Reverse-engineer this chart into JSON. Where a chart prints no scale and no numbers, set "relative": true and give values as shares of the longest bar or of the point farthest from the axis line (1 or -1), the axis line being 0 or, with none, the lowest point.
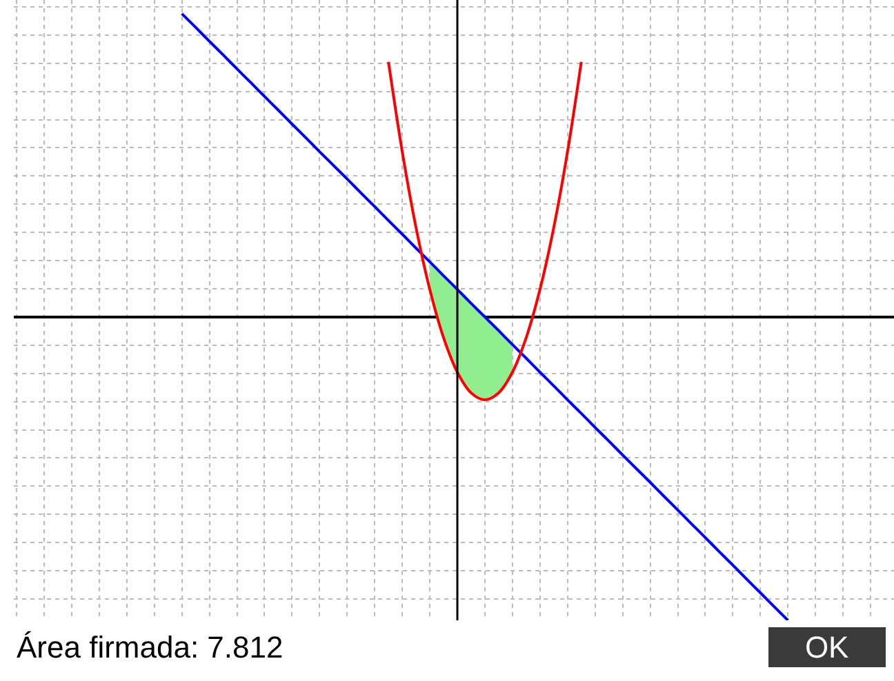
{
  "chart_data": {
    "type": "line",
    "relative": true,
    "grid": true,
    "marker": "none",
    "line_style": "solid",
    "categories": [
      null,
      null,
      null,
      null,
      null,
      null,
      null,
      null,
      null,
      null,
      null,
      null,
      null,
      null,
      null,
      null,
      null,
      null,
      null,
      null,
      null,
      null,
      null,
      null,
      null,
      null,
      null,
      null,
      null,
      null,
      null,
      null,
      null,
      null,
      null,
      null,
      null,
      null,
      null,
      null,
      null,
      null,
      null,
      null,
      null,
      null,
      null,
      null,
      null,
      null,
      null,
      null,
      null,
      null,
      null,
      null,
      null,
      null,
      null,
      null,
      null,
      null,
      null,
      null
    ],
    "series": [
      {
        "color": "#0000ff",
        "values": [
          null,
          null,
          null,
          null,
          null,
          null,
          null,
          null,
          null,
          null,
          null,
          null,
          1,
          0.955,
          0.909,
          0.864,
          0.818,
          0.773,
          0.727,
          0.682,
          0.636,
          0.591,
          0.545,
          0.5,
          0.455,
          0.409,
          0.364,
          0.318,
          0.273,
          0.227,
          0.182,
          0.136,
          0.091,
          0.045,
          0,
          -0.045,
          -0.091,
          -0.136,
          -0.182,
          -0.227,
          -0.273,
          -0.318,
          -0.364,
          -0.409,
          -0.455,
          -0.5,
          -0.545,
          -0.591,
          -0.636,
          -0.682,
          -0.727,
          -0.773,
          -0.818,
          -0.864,
          -0.909,
          -0.955,
          -1,
          null,
          null,
          null,
          null,
          null,
          null,
          null
        ],
        "lower": [
          null,
          null,
          null,
          null,
          null,
          null,
          null,
          null,
          null,
          null,
          null,
          null,
          null,
          null,
          null,
          null,
          null,
          null,
          null,
          null,
          null,
          null,
          null,
          null,
          null,
          null,
          null,
          null,
          null,
          null,
          0.091,
          -0.068,
          -0.182,
          -0.25,
          -0.273,
          -0.25,
          -0.182,
          null,
          null,
          null,
          null,
          null,
          null,
          null,
          null,
          null,
          null,
          null,
          null,
          null,
          null,
          null,
          null,
          null,
          null,
          null,
          null,
          null,
          null,
          null,
          null,
          null,
          null,
          null
        ],
        "upper": [
          null,
          null,
          null,
          null,
          null,
          null,
          null,
          null,
          null,
          null,
          null,
          null,
          null,
          null,
          null,
          null,
          null,
          null,
          null,
          null,
          null,
          null,
          null,
          null,
          null,
          null,
          null,
          null,
          null,
          null,
          0.182,
          0.136,
          0.091,
          0.045,
          0,
          -0.045,
          -0.091,
          null,
          null,
          null,
          null,
          null,
          null,
          null,
          null,
          null,
          null,
          null,
          null,
          null,
          null,
          null,
          null,
          null,
          null,
          null,
          null,
          null,
          null,
          null,
          null,
          null,
          null,
          null
        ]
      },
      {
        "color": "#ff0000",
        "values": [
          null,
          null,
          null,
          null,
          null,
          null,
          null,
          null,
          null,
          null,
          null,
          null,
          null,
          null,
          null,
          null,
          null,
          null,
          null,
          null,
          null,
          null,
          null,
          null,
          null,
          null,
          null,
          0.841,
          0.545,
          0.295,
          0.091,
          -0.068,
          -0.182,
          -0.25,
          -0.273,
          -0.25,
          -0.182,
          -0.068,
          0.091,
          0.295,
          0.545,
          0.841,
          null,
          null,
          null,
          null,
          null,
          null,
          null,
          null,
          null,
          null,
          null,
          null,
          null,
          null,
          null,
          null,
          null,
          null,
          null,
          null,
          null,
          null
        ]
      }
    ],
    "annotations": [
      "Área firmada: 7.812",
      "OK"
    ]
  }
}
